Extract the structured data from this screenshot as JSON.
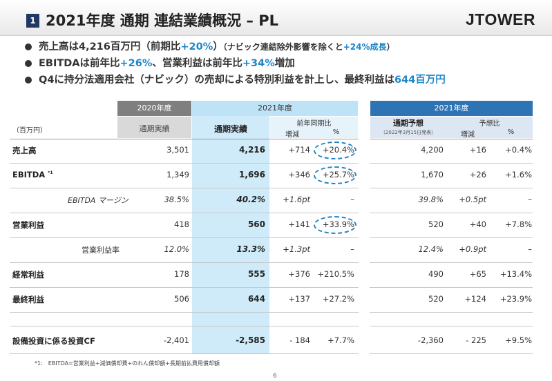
{
  "header": {
    "slide_number": "1",
    "title": "2021年度 通期 連結業績概況 – PL",
    "logo": "JTOWER"
  },
  "bullets": [
    {
      "parts": [
        {
          "t": "売上高は4,216百万円（前期比"
        },
        {
          "t": "+20%",
          "hl": true
        },
        {
          "t": "）"
        },
        {
          "t": "（ナビック連結除外影響を除くと",
          "note": true
        },
        {
          "t": "+24%成長",
          "hl": true,
          "note": true
        },
        {
          "t": "）",
          "note": true
        }
      ]
    },
    {
      "parts": [
        {
          "t": "EBITDAは前年比"
        },
        {
          "t": "+26%",
          "hl": true
        },
        {
          "t": "、営業利益は前年比"
        },
        {
          "t": "+34%",
          "hl": true
        },
        {
          "t": "増加"
        }
      ]
    },
    {
      "parts": [
        {
          "t": "Q4に持分法適用会社（ナビック）の売却による特別利益を計上し、最終利益は"
        },
        {
          "t": "644百万円",
          "hl": true
        }
      ]
    }
  ],
  "table": {
    "unit": "（百万円）",
    "band_2020": "2020年度",
    "band_2021": "2021年度",
    "band_2021_forecast": "2021年度",
    "col_prev_actual": "通期実績",
    "col_actual": "通期実績",
    "col_yoy_group": "前年同期比",
    "col_change": "増減",
    "col_pct": "%",
    "col_forecast": "通期予想",
    "col_forecast_note": "（2022年3月15日発表）",
    "col_vs_forecast_group": "予想比",
    "col_fc_change": "増減",
    "col_fc_pct": "%",
    "rows": [
      {
        "label": "売上高",
        "prev": "3,501",
        "actual": "4,216",
        "change": "+714",
        "pct": "+20.4%",
        "forecast": "4,200",
        "fc_change": "+16",
        "fc_pct": "+0.4%"
      },
      {
        "label": "EBITDA",
        "sup": "*1",
        "prev": "1,349",
        "actual": "1,696",
        "change": "+346",
        "pct": "+25.7%",
        "forecast": "1,670",
        "fc_change": "+26",
        "fc_pct": "+1.6%"
      },
      {
        "label": "EBITDA マージン",
        "prev": "38.5%",
        "actual": "40.2%",
        "change": "+1.6pt",
        "pct": "–",
        "forecast": "39.8%",
        "fc_change": "+0.5pt",
        "fc_pct": "–"
      },
      {
        "label": "営業利益",
        "prev": "418",
        "actual": "560",
        "change": "+141",
        "pct": "+33.9%",
        "forecast": "520",
        "fc_change": "+40",
        "fc_pct": "+7.8%"
      },
      {
        "label": "営業利益率",
        "prev": "12.0%",
        "actual": "13.3%",
        "change": "+1.3pt",
        "pct": "–",
        "forecast": "12.4%",
        "fc_change": "+0.9pt",
        "fc_pct": "–"
      },
      {
        "label": "経常利益",
        "prev": "178",
        "actual": "555",
        "change": "+376",
        "pct": "+210.5%",
        "forecast": "490",
        "fc_change": "+65",
        "fc_pct": "+13.4%"
      },
      {
        "label": "最終利益",
        "prev": "506",
        "actual": "644",
        "change": "+137",
        "pct": "+27.2%",
        "forecast": "520",
        "fc_change": "+124",
        "fc_pct": "+23.9%"
      },
      {
        "label": "設備投資に係る投資CF",
        "prev": "-2,401",
        "actual": "-2,585",
        "change": "- 184",
        "pct": "+7.7%",
        "forecast": "-2,360",
        "fc_change": "- 225",
        "fc_pct": "+9.5%"
      }
    ]
  },
  "footnote": "*1:　EBITDA=営業利益+減価償却費+のれん償却額+長期前払費用償却額",
  "page_number": "6",
  "colors": {
    "accent": "#1f86c8",
    "navy": "#1f3864",
    "gray_band": "#7f7f7f",
    "light_blue": "#bfe3f6",
    "forecast_band": "#2e74b5"
  }
}
